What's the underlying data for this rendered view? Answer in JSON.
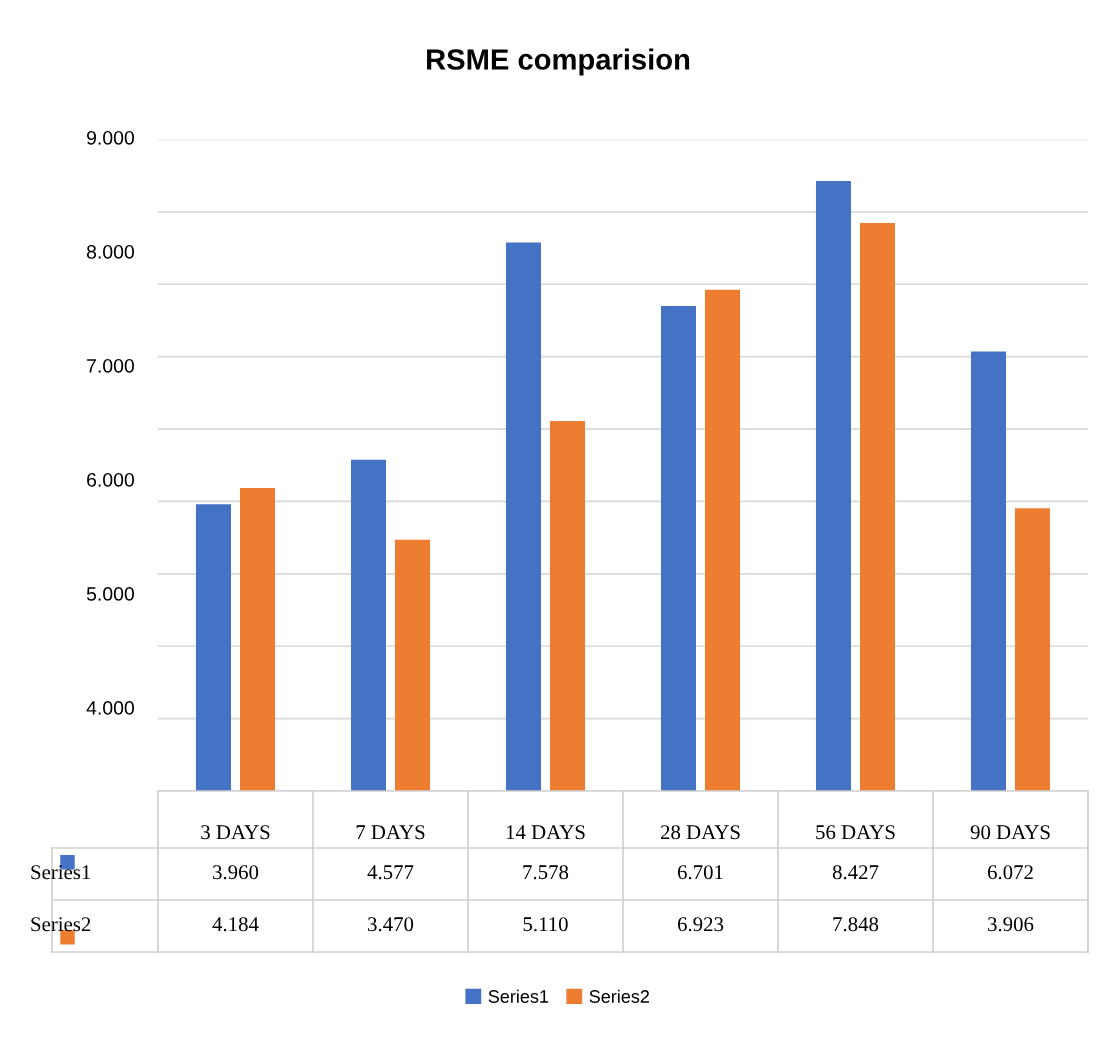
{
  "chart_data": {
    "type": "bar",
    "title": "RSME comparision",
    "categories": [
      "3 DAYS",
      "7 DAYS",
      "14 DAYS",
      "28 DAYS",
      "56 DAYS",
      "90 DAYS"
    ],
    "series": [
      {
        "name": "Series1",
        "color": "#4472c4",
        "values": [
          3.96,
          4.577,
          7.578,
          6.701,
          8.427,
          6.072
        ],
        "value_labels": [
          "3.960",
          "4.577",
          "7.578",
          "6.701",
          "8.427",
          "6.072"
        ]
      },
      {
        "name": "Series2",
        "color": "#ed7d31",
        "values": [
          4.184,
          3.47,
          5.11,
          6.923,
          7.848,
          3.906
        ],
        "value_labels": [
          "4.184",
          "3.470",
          "5.110",
          "6.923",
          "7.848",
          "3.906"
        ]
      }
    ],
    "ylim": [
      0,
      9
    ],
    "yticks": [
      {
        "value": 0,
        "label": null
      },
      {
        "value": 1,
        "label": null
      },
      {
        "value": 2,
        "label": null
      },
      {
        "value": 3,
        "label": null
      },
      {
        "value": 4,
        "label": null
      },
      {
        "value": 5,
        "label": null
      },
      {
        "value": 6,
        "label": null
      },
      {
        "value": 7,
        "label": null
      },
      {
        "value": 8,
        "label": null
      },
      {
        "value": 9,
        "label": null
      }
    ],
    "annotations": [
      "9.000",
      "8.000",
      "7.000",
      "6.000",
      "5.000",
      "4.000"
    ],
    "grid": "y",
    "legend": "bottom"
  }
}
